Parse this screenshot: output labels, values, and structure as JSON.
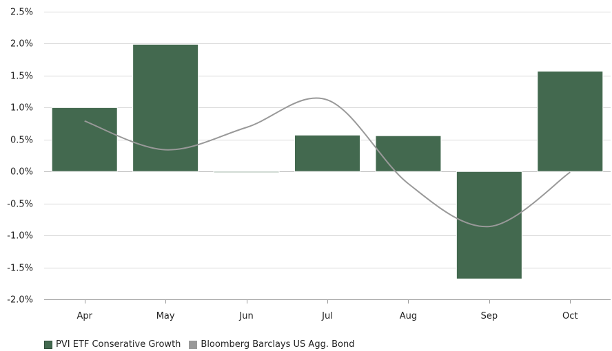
{
  "chart_data": {
    "type": "bar",
    "categories": [
      "Apr",
      "May",
      "Jun",
      "Jul",
      "Aug",
      "Sep",
      "Oct"
    ],
    "ylim": [
      -2.0,
      2.5
    ],
    "yticks": [
      2.5,
      2.0,
      1.5,
      1.0,
      0.5,
      0.0,
      -0.5,
      -1.0,
      -1.5,
      -2.0
    ],
    "ytick_labels": [
      "2.5%",
      "2.0%",
      "1.5%",
      "1.0%",
      "0.5%",
      "0.0%",
      "-0.5%",
      "-1.0%",
      "-1.5%",
      "-2.0%"
    ],
    "grid": true,
    "legend_position": "bottom-left",
    "series": [
      {
        "name": "PVI ETF Conserative Growth",
        "type": "bar",
        "color": "#43694f",
        "values": [
          1.0,
          1.99,
          -0.01,
          0.57,
          0.56,
          -1.68,
          1.57
        ]
      },
      {
        "name": "Bloomberg Barclays US Agg. Bond",
        "type": "line",
        "color": "#999999",
        "values": [
          0.79,
          0.34,
          0.69,
          1.12,
          -0.19,
          -0.86,
          -0.01
        ]
      }
    ]
  }
}
